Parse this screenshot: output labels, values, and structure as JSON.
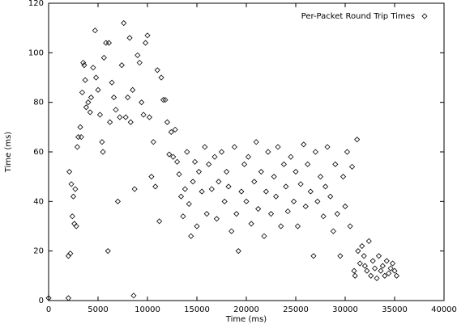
{
  "chart_data": {
    "type": "scatter",
    "xlabel": "Time (ms)",
    "ylabel": "Time (ms)",
    "xlim": [
      0,
      40000
    ],
    "xticks": [
      0,
      5000,
      10000,
      15000,
      20000,
      25000,
      30000,
      35000,
      40000
    ],
    "ylim": [
      0,
      120
    ],
    "yticks": [
      0,
      20,
      40,
      60,
      80,
      100,
      120
    ],
    "grid": false,
    "legend_position": "top-right",
    "series": [
      {
        "name": "Per-Packet Round Trip Times",
        "color": "#000000",
        "x": [
          0,
          2000,
          2000,
          2200,
          2100,
          2300,
          2500,
          2700,
          2400,
          2600,
          2800,
          2900,
          3000,
          3200,
          3300,
          3400,
          3500,
          3600,
          3700,
          3800,
          4000,
          4200,
          4300,
          4500,
          4700,
          4800,
          5000,
          5200,
          5400,
          5500,
          5600,
          5800,
          6000,
          6100,
          6200,
          6400,
          6600,
          6800,
          7000,
          7200,
          7400,
          7600,
          7800,
          8000,
          8200,
          8300,
          8500,
          8600,
          8700,
          9000,
          9200,
          9400,
          9600,
          9800,
          10000,
          10200,
          10400,
          10600,
          10800,
          11000,
          11200,
          11400,
          11600,
          11800,
          12000,
          12200,
          12400,
          12600,
          12800,
          13000,
          13200,
          13400,
          13600,
          13800,
          14000,
          14200,
          14400,
          14600,
          14800,
          15000,
          15200,
          15500,
          15800,
          16000,
          16200,
          16500,
          16800,
          17000,
          17200,
          17500,
          17800,
          18000,
          18200,
          18500,
          18800,
          19000,
          19200,
          19500,
          19800,
          20000,
          20200,
          20500,
          20800,
          21000,
          21200,
          21500,
          21800,
          22000,
          22200,
          22500,
          22800,
          23000,
          23200,
          23500,
          23800,
          24000,
          24200,
          24500,
          24800,
          25000,
          25200,
          25500,
          25800,
          26000,
          26200,
          26500,
          26800,
          27000,
          27200,
          27500,
          27800,
          28000,
          28200,
          28500,
          28800,
          29000,
          29200,
          29500,
          29800,
          30000,
          30200,
          30500,
          30700,
          30900,
          31000,
          31200,
          31300,
          31500,
          31700,
          31900,
          32000,
          32200,
          32400,
          32600,
          32800,
          33000,
          33200,
          33400,
          33600,
          33800,
          34000,
          34200,
          34400,
          34600,
          34800,
          35000,
          35200
        ],
        "values": [
          1,
          1,
          18,
          19,
          52,
          47,
          42,
          45,
          34,
          31,
          30,
          62,
          66,
          70,
          66,
          84,
          96,
          95,
          89,
          78,
          80,
          76,
          82,
          94,
          109,
          90,
          85,
          75,
          64,
          60,
          98,
          104,
          20,
          104,
          72,
          88,
          82,
          77,
          40,
          74,
          95,
          112,
          74,
          82,
          106,
          72,
          85,
          2,
          45,
          99,
          96,
          80,
          75,
          104,
          107,
          74,
          50,
          64,
          46,
          93,
          32,
          90,
          81,
          81,
          72,
          59,
          68,
          58,
          69,
          56,
          51,
          42,
          34,
          45,
          60,
          39,
          26,
          48,
          56,
          30,
          52,
          44,
          62,
          35,
          55,
          45,
          58,
          33,
          48,
          60,
          40,
          52,
          46,
          28,
          62,
          35,
          20,
          44,
          55,
          40,
          58,
          31,
          48,
          64,
          37,
          52,
          26,
          44,
          60,
          35,
          50,
          42,
          62,
          30,
          55,
          46,
          36,
          58,
          40,
          52,
          30,
          47,
          63,
          38,
          55,
          44,
          18,
          60,
          40,
          50,
          34,
          46,
          62,
          42,
          28,
          55,
          35,
          18,
          50,
          38,
          60,
          30,
          54,
          12,
          10,
          65,
          20,
          15,
          22,
          18,
          14,
          12,
          24,
          10,
          16,
          13,
          9,
          18,
          12,
          14,
          10,
          16,
          11,
          13,
          15,
          12,
          10
        ]
      }
    ]
  }
}
